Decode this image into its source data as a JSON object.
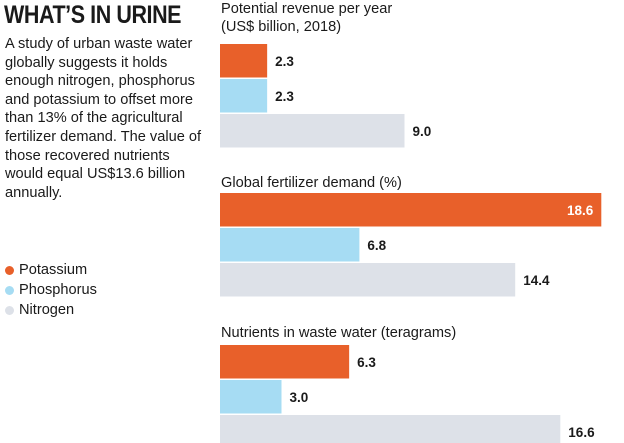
{
  "title": "WHAT’S IN URINE",
  "intro": "A study of urban waste water globally suggests it holds enough nitrogen, phosphorus and potassium to offset more than 13% of the agricultural fertilizer demand. The value of those recovered nutrients would equal US$13.6 billion annually.",
  "legend": [
    {
      "label": "Potassium",
      "color": "#e8602a"
    },
    {
      "label": "Phosphorus",
      "color": "#a6dcf3"
    },
    {
      "label": "Nitrogen",
      "color": "#dde1e8"
    }
  ],
  "chart_data": [
    {
      "type": "bar",
      "orientation": "horizontal",
      "title_lines": [
        "Potential revenue per year",
        "(US$ billion, 2018)"
      ],
      "categories": [
        "Potassium",
        "Phosphorus",
        "Nitrogen"
      ],
      "values": [
        2.3,
        2.3,
        9.0
      ],
      "labels": [
        "2.3",
        "2.3",
        "9.0"
      ],
      "colors": [
        "#e8602a",
        "#a6dcf3",
        "#dde1e8"
      ],
      "grid": false
    },
    {
      "type": "bar",
      "orientation": "horizontal",
      "title_lines": [
        "Global fertilizer demand (%)"
      ],
      "categories": [
        "Potassium",
        "Phosphorus",
        "Nitrogen"
      ],
      "values": [
        18.6,
        6.8,
        14.4
      ],
      "labels": [
        "18.6",
        "6.8",
        "14.4"
      ],
      "colors": [
        "#e8602a",
        "#a6dcf3",
        "#dde1e8"
      ],
      "grid": false
    },
    {
      "type": "bar",
      "orientation": "horizontal",
      "title_lines": [
        "Nutrients in waste water (teragrams)"
      ],
      "categories": [
        "Potassium",
        "Phosphorus",
        "Nitrogen"
      ],
      "values": [
        6.3,
        3.0,
        16.6
      ],
      "labels": [
        "6.3",
        "3.0",
        "16.6"
      ],
      "colors": [
        "#e8602a",
        "#a6dcf3",
        "#dde1e8"
      ],
      "grid": false
    }
  ]
}
